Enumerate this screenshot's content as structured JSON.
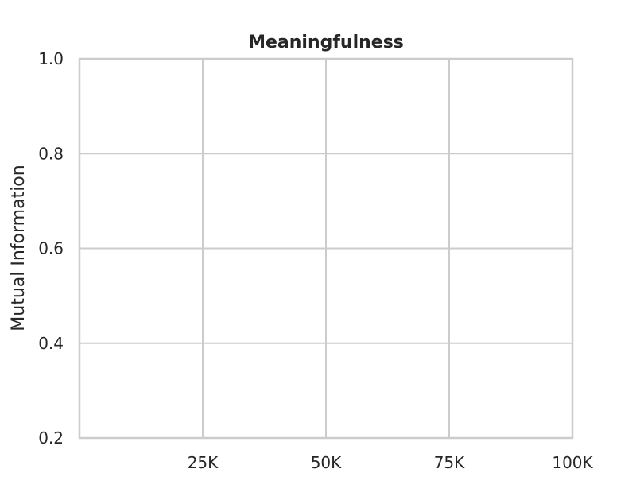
{
  "chart_data": {
    "type": "line",
    "title": "Meaningfulness",
    "xlabel": "",
    "ylabel": "Mutual Information",
    "xlim": [
      0,
      100000
    ],
    "ylim": [
      0.2,
      1.0
    ],
    "x_ticks": [
      25000,
      50000,
      75000,
      100000
    ],
    "x_tick_labels": [
      "25K",
      "50K",
      "75K",
      "100K"
    ],
    "y_ticks": [
      0.2,
      0.4,
      0.6,
      0.8,
      1.0
    ],
    "y_tick_labels": [
      "0.2",
      "0.4",
      "0.6",
      "0.8",
      "1.0"
    ],
    "grid": true,
    "series": []
  },
  "colors": {
    "grid": "#cccccc",
    "text": "#262626",
    "background": "#ffffff"
  }
}
